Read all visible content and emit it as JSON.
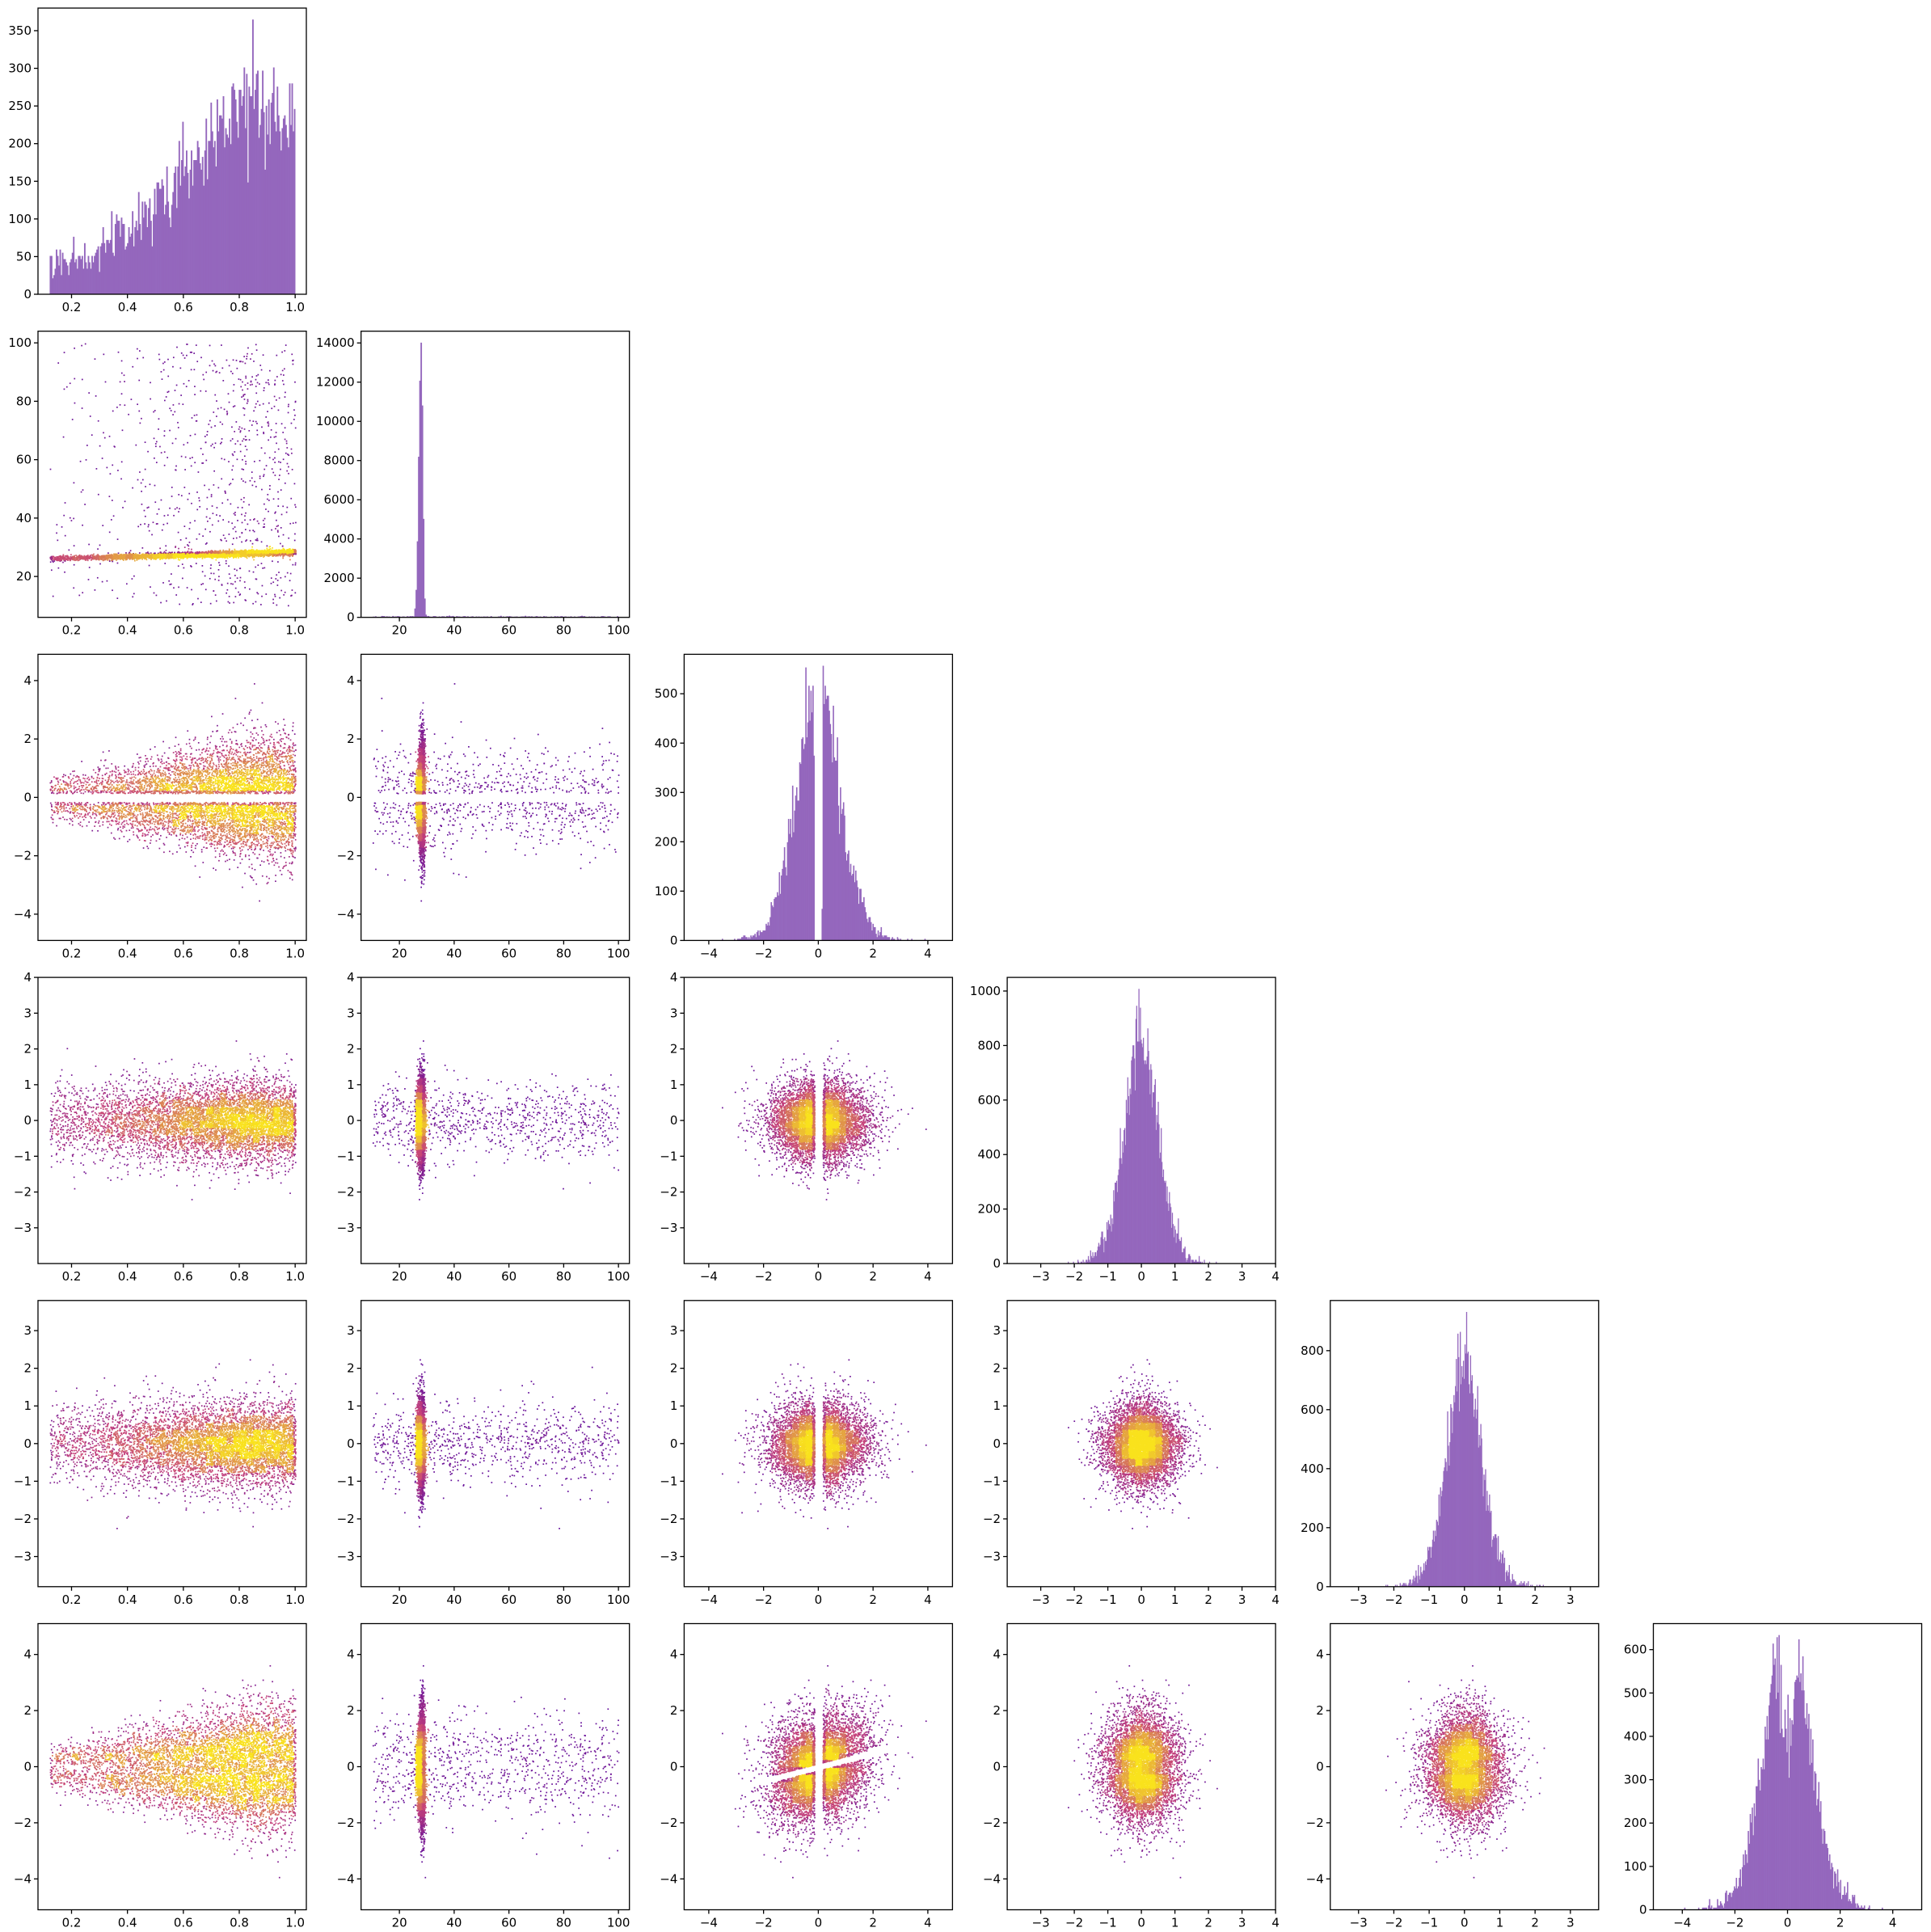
{
  "figure": {
    "colors": {
      "histogram": "#9467bd",
      "scatter_low": "#5a0a9e",
      "scatter_mid": "#c5407a",
      "scatter_high": "#f9e21d"
    }
  },
  "chart_data": {
    "type": "corner-plot",
    "grid_size": 6,
    "variables": [
      {
        "index": 0,
        "distribution": "rising, plateau near 0.8-1.0",
        "range": [
          0.1,
          1.0
        ],
        "lim": [
          0.08,
          1.04
        ],
        "ticks": [
          0.2,
          0.4,
          0.6,
          0.8,
          1.0
        ],
        "tick_labels": [
          "0.2",
          "0.4",
          "0.6",
          "0.8",
          "1.0"
        ]
      },
      {
        "index": 1,
        "distribution": "sharp peak at 28 with uniform background 10-100",
        "range": [
          10,
          100
        ],
        "lim": [
          6,
          104
        ],
        "ticks": [
          20,
          40,
          60,
          80,
          100
        ],
        "tick_labels": [
          "20",
          "40",
          "60",
          "80",
          "100"
        ]
      },
      {
        "index": 2,
        "distribution": "bimodal around -0.4 and 0.4",
        "lim": [
          -4.9,
          4.9
        ],
        "ticks": [
          -4,
          -2,
          0,
          2,
          4
        ],
        "tick_labels": [
          "−4",
          "−2",
          "0",
          "2",
          "4"
        ]
      },
      {
        "index": 3,
        "distribution": "sharply peaked at 0",
        "lim": [
          -4,
          4
        ],
        "ticks": [
          -3,
          -2,
          -1,
          0,
          1,
          2,
          3,
          4
        ],
        "tick_labels": [
          "−3",
          "−2",
          "−1",
          "0",
          "1",
          "2",
          "3",
          "4"
        ]
      },
      {
        "index": 4,
        "distribution": "sharply peaked at 0",
        "lim": [
          -3.8,
          3.8
        ],
        "ticks": [
          -3,
          -2,
          -1,
          0,
          1,
          2,
          3
        ],
        "tick_labels": [
          "−3",
          "−2",
          "−1",
          "0",
          "1",
          "2",
          "3"
        ]
      },
      {
        "index": 5,
        "distribution": "bimodal around -0.3 and 0.4",
        "lim": [
          -5.1,
          5.1
        ],
        "ticks": [
          -4,
          -2,
          0,
          2,
          4
        ],
        "tick_labels": [
          "−4",
          "−2",
          "0",
          "2",
          "4"
        ]
      }
    ],
    "histograms": [
      {
        "variable": 0,
        "type": "bar",
        "bins": 200,
        "ylim": [
          0,
          380
        ],
        "yticks": [
          0,
          50,
          100,
          150,
          200,
          250,
          300,
          350
        ],
        "ytick_labels": [
          "0",
          "50",
          "100",
          "150",
          "200",
          "250",
          "300",
          "350"
        ],
        "xtick_labels": [
          "0.2",
          "0.4",
          "0.6",
          "0.8",
          "1.0"
        ]
      },
      {
        "variable": 1,
        "type": "bar",
        "bins": 200,
        "ylim": [
          0,
          14600
        ],
        "yticks": [
          0,
          2000,
          4000,
          6000,
          8000,
          10000,
          12000,
          14000
        ],
        "ytick_labels": [
          "0",
          "2000",
          "4000",
          "6000",
          "8000",
          "10000",
          "12000",
          "14000"
        ],
        "xtick_labels": [
          "20",
          "40",
          "60",
          "80",
          "100"
        ]
      },
      {
        "variable": 2,
        "type": "bar",
        "bins": 200,
        "ylim": [
          0,
          580
        ],
        "yticks": [
          0,
          100,
          200,
          300,
          400,
          500
        ],
        "ytick_labels": [
          "0",
          "100",
          "200",
          "300",
          "400",
          "500"
        ],
        "xtick_labels": [
          "−4",
          "−2",
          "0",
          "2",
          "4"
        ]
      },
      {
        "variable": 3,
        "type": "bar",
        "bins": 200,
        "ylim": [
          0,
          1050
        ],
        "yticks": [
          0,
          200,
          400,
          600,
          800,
          1000
        ],
        "ytick_labels": [
          "0",
          "200",
          "400",
          "600",
          "800",
          "1000"
        ],
        "xtick_labels": [
          "−2",
          "0",
          "2",
          "4"
        ]
      },
      {
        "variable": 4,
        "type": "bar",
        "bins": 200,
        "ylim": [
          0,
          970
        ],
        "yticks": [
          0,
          200,
          400,
          600,
          800
        ],
        "ytick_labels": [
          "0",
          "200",
          "400",
          "600",
          "800"
        ],
        "xtick_labels": [
          "−2",
          "0",
          "2"
        ]
      },
      {
        "variable": 5,
        "type": "bar",
        "bins": 200,
        "ylim": [
          0,
          660
        ],
        "yticks": [
          0,
          100,
          200,
          300,
          400,
          500,
          600
        ],
        "ytick_labels": [
          "0",
          "100",
          "200",
          "300",
          "400",
          "500",
          "600"
        ],
        "xtick_labels": [
          "−4",
          "−2",
          "0",
          "2",
          "4"
        ]
      }
    ],
    "scatter_panels": [
      {
        "row": 1,
        "col": 0,
        "type": "scatter",
        "pattern": "flat ridge at y≈25-28, rising slightly with x"
      },
      {
        "row": 2,
        "col": 0,
        "type": "scatter",
        "pattern": "spread widening with x, split along y=0 near x=1"
      },
      {
        "row": 2,
        "col": 1,
        "type": "scatter",
        "pattern": "vertical ridge at x=28"
      },
      {
        "row": 3,
        "col": 0,
        "type": "scatter",
        "pattern": "dense band near y=0 for x>0.5"
      },
      {
        "row": 3,
        "col": 1,
        "type": "scatter",
        "pattern": "vertical ridge at x=28"
      },
      {
        "row": 3,
        "col": 2,
        "type": "scatter",
        "pattern": "horizontal band with notch at x=0"
      },
      {
        "row": 4,
        "col": 0,
        "type": "scatter",
        "pattern": "dense band near y=0 for x>0.5"
      },
      {
        "row": 4,
        "col": 1,
        "type": "scatter",
        "pattern": "vertical ridge at x=28"
      },
      {
        "row": 4,
        "col": 2,
        "type": "scatter",
        "pattern": "horizontal band with notch at x=0"
      },
      {
        "row": 4,
        "col": 3,
        "type": "scatter",
        "pattern": "round blob centred at origin"
      },
      {
        "row": 5,
        "col": 0,
        "type": "scatter",
        "pattern": "spread widening with x, split along y=0 near x=1"
      },
      {
        "row": 5,
        "col": 1,
        "type": "scatter",
        "pattern": "vertical ridge at x=28"
      },
      {
        "row": 5,
        "col": 2,
        "type": "scatter",
        "pattern": "four-armed pinwheel"
      },
      {
        "row": 5,
        "col": 3,
        "type": "scatter",
        "pattern": "vertical band with gap at y=0"
      },
      {
        "row": 5,
        "col": 4,
        "type": "scatter",
        "pattern": "vertical band with gap at y=0"
      }
    ]
  }
}
